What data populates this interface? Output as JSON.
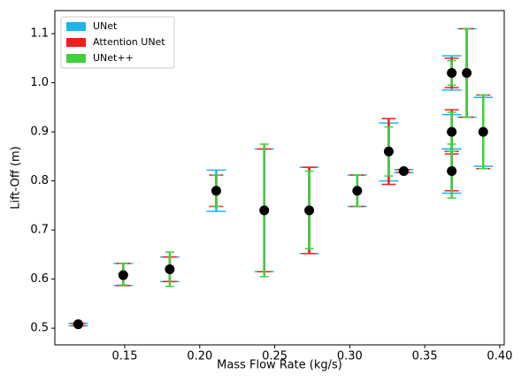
{
  "chart_data": {
    "type": "errorbar",
    "xlabel": "Mass Flow Rate (kg/s)",
    "ylabel": "Lift-Off (m)",
    "x": [
      0.119,
      0.149,
      0.18,
      0.211,
      0.243,
      0.273,
      0.305,
      0.326,
      0.336,
      0.368,
      0.368,
      0.368,
      0.378,
      0.389
    ],
    "y": [
      0.508,
      0.608,
      0.62,
      0.78,
      0.74,
      0.74,
      0.78,
      0.86,
      0.82,
      1.02,
      0.9,
      0.82,
      1.02,
      0.9
    ],
    "marker_color": "#000000",
    "series": [
      {
        "name": "UNet",
        "color": "#1fb4e8",
        "lower": [
          0.505,
          0.587,
          0.595,
          0.738,
          0.615,
          0.652,
          0.748,
          0.8,
          0.817,
          0.985,
          0.865,
          0.775,
          0.93,
          0.83
        ],
        "upper": [
          0.51,
          0.632,
          0.645,
          0.822,
          0.865,
          0.828,
          0.812,
          0.918,
          0.823,
          1.055,
          0.935,
          0.865,
          1.11,
          0.97
        ]
      },
      {
        "name": "Attention UNet",
        "color": "#f21d1d",
        "lower": [
          0.505,
          0.587,
          0.595,
          0.748,
          0.615,
          0.652,
          0.748,
          0.793,
          0.817,
          0.99,
          0.855,
          0.78,
          0.93,
          0.825
        ],
        "upper": [
          0.51,
          0.632,
          0.645,
          0.812,
          0.865,
          0.828,
          0.812,
          0.927,
          0.823,
          1.05,
          0.945,
          0.86,
          1.11,
          0.975
        ]
      },
      {
        "name": "UNet++",
        "color": "#3fcf3f",
        "lower": [
          0.505,
          0.588,
          0.585,
          0.748,
          0.605,
          0.662,
          0.748,
          0.81,
          0.817,
          0.995,
          0.86,
          0.765,
          0.93,
          0.825
        ],
        "upper": [
          0.51,
          0.632,
          0.655,
          0.812,
          0.875,
          0.82,
          0.812,
          0.91,
          0.823,
          1.045,
          0.94,
          0.875,
          1.11,
          0.975
        ]
      }
    ],
    "xlim": [
      0.1034,
      0.403
    ],
    "ylim": [
      0.466,
      1.147
    ],
    "xticks": [
      0.15,
      {
        "value": 0.2,
        "label": "0.20"
      },
      0.25,
      {
        "value": 0.3,
        "label": "0.30"
      },
      0.35,
      {
        "value": 0.4,
        "label": "0.40"
      }
    ],
    "yticks": [
      0.5,
      0.6,
      0.7,
      0.8,
      0.9,
      {
        "value": 1.0,
        "label": "1.0"
      },
      1.1
    ],
    "legend": "upper left"
  }
}
